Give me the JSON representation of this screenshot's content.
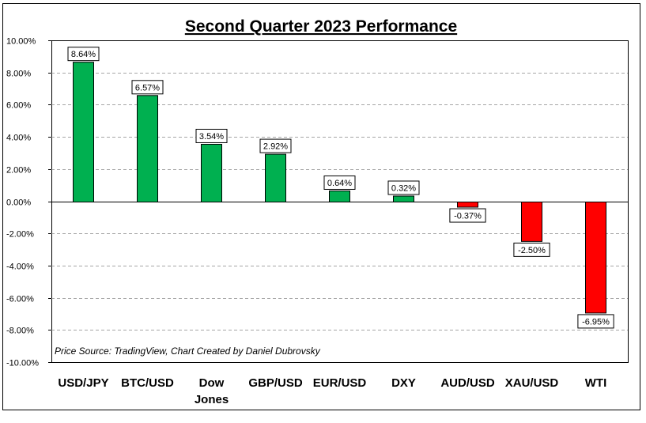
{
  "chart_data": {
    "type": "bar",
    "title": "Second Quarter 2023 Performance",
    "xlabel": "",
    "ylabel": "",
    "categories": [
      "USD/JPY",
      "BTC/USD",
      "Dow Jones",
      "GBP/USD",
      "EUR/USD",
      "DXY",
      "AUD/USD",
      "XAU/USD",
      "WTI"
    ],
    "category_lines": [
      [
        "USD/JPY"
      ],
      [
        "BTC/USD"
      ],
      [
        "Dow",
        "Jones"
      ],
      [
        "GBP/USD"
      ],
      [
        "EUR/USD"
      ],
      [
        "DXY"
      ],
      [
        "AUD/USD"
      ],
      [
        "XAU/USD"
      ],
      [
        "WTI"
      ]
    ],
    "values": [
      8.64,
      6.57,
      3.54,
      2.92,
      0.64,
      0.32,
      -0.37,
      -2.5,
      -6.95
    ],
    "data_labels": [
      "8.64%",
      "6.57%",
      "3.54%",
      "2.92%",
      "0.64%",
      "0.32%",
      "-0.37%",
      "-2.50%",
      "-6.95%"
    ],
    "ylim": [
      -10,
      10
    ],
    "yticks": [
      10,
      8,
      6,
      4,
      2,
      0,
      -2,
      -4,
      -6,
      -8,
      -10
    ],
    "ytick_labels": [
      "10.00%",
      "8.00%",
      "6.00%",
      "4.00%",
      "2.00%",
      "0.00%",
      "-2.00%",
      "-4.00%",
      "-6.00%",
      "-8.00%",
      "-10.00%"
    ],
    "grid": true,
    "grid_style": "dashed",
    "legend": "none",
    "colors": {
      "positive": "#00b050",
      "negative": "#ff0000"
    },
    "annotation": "Price Source: TradingView, Chart Created by Daniel Dubrovsky"
  }
}
